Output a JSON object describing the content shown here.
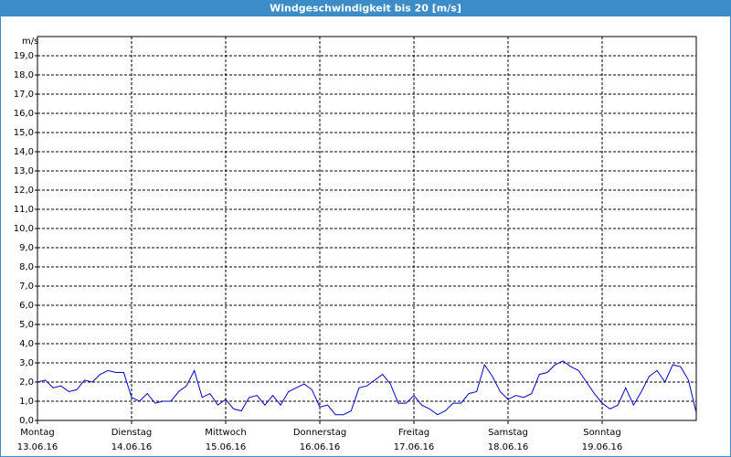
{
  "chart_data": {
    "type": "line",
    "title": "Windgeschwindigkeit bis 20 [m/s]",
    "y_label": "m/s",
    "x": [
      0,
      2,
      4,
      6,
      8,
      10,
      12,
      14,
      16,
      18,
      20,
      22,
      24,
      26,
      28,
      30,
      32,
      34,
      36,
      38,
      40,
      42,
      44,
      46,
      48,
      50,
      52,
      54,
      56,
      58,
      60,
      62,
      64,
      66,
      68,
      70,
      72,
      74,
      76,
      78,
      80,
      82,
      84,
      86,
      88,
      90,
      92,
      94,
      96,
      98,
      100,
      102,
      104,
      106,
      108,
      110,
      112,
      114,
      116,
      118,
      120,
      122,
      124,
      126,
      128,
      130,
      132,
      134,
      136,
      138,
      140,
      142,
      144,
      146,
      148,
      150,
      152,
      154,
      156,
      158,
      160,
      162,
      164,
      166,
      168
    ],
    "series": [
      {
        "name": "Windgeschwindigkeit",
        "color": "#0000c8",
        "values": [
          2.0,
          2.1,
          1.7,
          1.8,
          1.5,
          1.6,
          2.1,
          2.0,
          2.4,
          2.6,
          2.5,
          2.5,
          1.2,
          1.0,
          1.4,
          0.9,
          1.0,
          1.0,
          1.5,
          1.8,
          2.6,
          1.2,
          1.4,
          0.8,
          1.1,
          0.6,
          0.5,
          1.2,
          1.3,
          0.8,
          1.3,
          0.8,
          1.5,
          1.7,
          1.9,
          1.6,
          0.7,
          0.8,
          0.3,
          0.3,
          0.5,
          1.7,
          1.8,
          2.1,
          2.4,
          1.9,
          0.9,
          0.9,
          1.3,
          0.8,
          0.6,
          0.3,
          0.5,
          0.9,
          0.9,
          1.4,
          1.5,
          2.9,
          2.3,
          1.5,
          1.1,
          1.3,
          1.2,
          1.4,
          2.4,
          2.5,
          2.9,
          3.1,
          2.8,
          2.6,
          2.0,
          1.4,
          0.9,
          0.6,
          0.8,
          1.7,
          0.8,
          1.5,
          2.3,
          2.6,
          2.0,
          2.9,
          2.8,
          2.1,
          0.4
        ]
      }
    ],
    "xlim": [
      0,
      168
    ],
    "xticks": [
      {
        "value": 0,
        "label": "Montag"
      },
      {
        "value": 24,
        "label": "Dienstag"
      },
      {
        "value": 48,
        "label": "Mittwoch"
      },
      {
        "value": 72,
        "label": "Donnerstag"
      },
      {
        "value": 96,
        "label": "Freitag"
      },
      {
        "value": 120,
        "label": "Samstag"
      },
      {
        "value": 144,
        "label": "Sonntag"
      }
    ],
    "xtick_dates": [
      "13.06.16",
      "14.06.16",
      "15.06.16",
      "16.06.16",
      "17.06.16",
      "18.06.16",
      "19.06.16"
    ],
    "ylim": [
      0,
      20
    ],
    "yticks": [
      {
        "value": 0,
        "label": "0,0"
      },
      {
        "value": 1,
        "label": "1,0"
      },
      {
        "value": 2,
        "label": "2,0"
      },
      {
        "value": 3,
        "label": "3,0"
      },
      {
        "value": 4,
        "label": "4,0"
      },
      {
        "value": 5,
        "label": "5,0"
      },
      {
        "value": 6,
        "label": "6,0"
      },
      {
        "value": 7,
        "label": "7,0"
      },
      {
        "value": 8,
        "label": "8,0"
      },
      {
        "value": 9,
        "label": "9,0"
      },
      {
        "value": 10,
        "label": "10,0"
      },
      {
        "value": 11,
        "label": "11,0"
      },
      {
        "value": 12,
        "label": "12,0"
      },
      {
        "value": 13,
        "label": "13,0"
      },
      {
        "value": 14,
        "label": "14,0"
      },
      {
        "value": 15,
        "label": "15,0"
      },
      {
        "value": 16,
        "label": "16,0"
      },
      {
        "value": 17,
        "label": "17,0"
      },
      {
        "value": 18,
        "label": "18,0"
      },
      {
        "value": 19,
        "label": "19,0"
      }
    ],
    "grid": true
  }
}
